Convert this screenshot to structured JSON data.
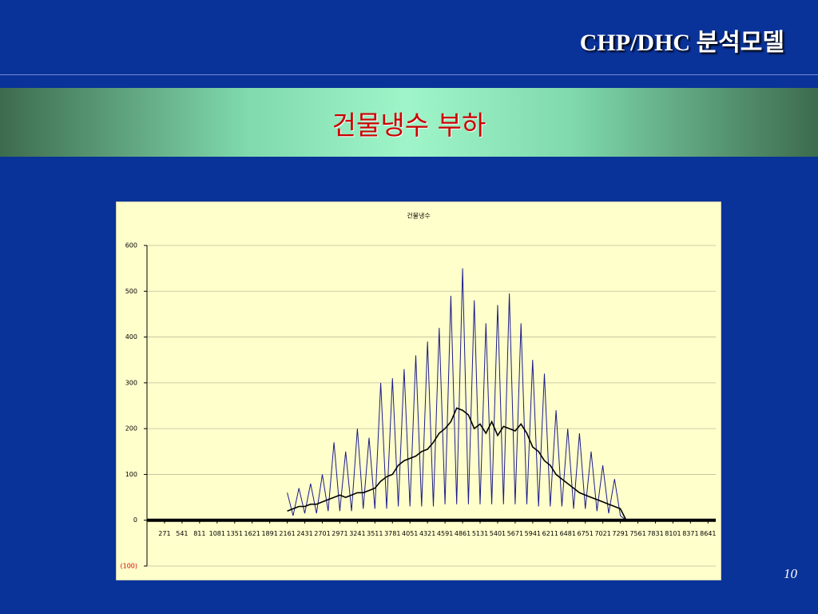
{
  "header": {
    "title": "CHP/DHC 분석모델",
    "subtitle": "건물냉수 부하"
  },
  "footer": {
    "page": "10"
  },
  "chart_data": {
    "type": "line",
    "title": "건물냉수",
    "x": [
      2161,
      2251,
      2341,
      2431,
      2521,
      2611,
      2701,
      2791,
      2881,
      2971,
      3061,
      3151,
      3241,
      3331,
      3421,
      3511,
      3601,
      3691,
      3781,
      3871,
      3961,
      4051,
      4141,
      4231,
      4321,
      4411,
      4501,
      4591,
      4681,
      4771,
      4861,
      4951,
      5041,
      5131,
      5221,
      5311,
      5401,
      5491,
      5581,
      5671,
      5761,
      5851,
      5941,
      6031,
      6121,
      6211,
      6301,
      6391,
      6481,
      6571,
      6661,
      6751,
      6841,
      6931,
      7021,
      7111,
      7201,
      7291,
      7381
    ],
    "series": [
      {
        "color": "#1c1c8a",
        "values": [
          60,
          10,
          70,
          15,
          80,
          15,
          100,
          20,
          170,
          20,
          150,
          20,
          200,
          25,
          180,
          25,
          300,
          25,
          310,
          30,
          330,
          30,
          360,
          30,
          390,
          30,
          420,
          35,
          490,
          35,
          550,
          35,
          480,
          35,
          430,
          35,
          470,
          35,
          495,
          35,
          430,
          35,
          350,
          30,
          320,
          30,
          240,
          30,
          200,
          25,
          190,
          25,
          150,
          20,
          120,
          15,
          90,
          10,
          0
        ]
      },
      {
        "color": "#000000",
        "values": [
          20,
          25,
          30,
          30,
          35,
          35,
          40,
          45,
          50,
          55,
          50,
          55,
          60,
          60,
          65,
          70,
          85,
          95,
          100,
          120,
          130,
          135,
          140,
          150,
          155,
          170,
          190,
          200,
          215,
          245,
          240,
          230,
          200,
          210,
          190,
          215,
          185,
          205,
          200,
          195,
          210,
          190,
          160,
          150,
          130,
          120,
          100,
          90,
          80,
          70,
          60,
          55,
          50,
          45,
          40,
          35,
          30,
          25,
          0
        ]
      }
    ],
    "xlim": [
      1,
      8760
    ],
    "xticks": [
      271,
      541,
      811,
      1081,
      1351,
      1621,
      1891,
      2161,
      2431,
      2701,
      2971,
      3241,
      3511,
      3781,
      4051,
      4321,
      4591,
      4861,
      5131,
      5401,
      5671,
      5941,
      6211,
      6481,
      6751,
      7021,
      7291,
      7561,
      7831,
      8101,
      8371,
      8641
    ],
    "ylim": [
      -100,
      600
    ],
    "yticks": [
      600,
      500,
      400,
      300,
      200,
      100,
      0,
      {
        "value": -100,
        "label": "(100)"
      }
    ],
    "grid": true
  }
}
